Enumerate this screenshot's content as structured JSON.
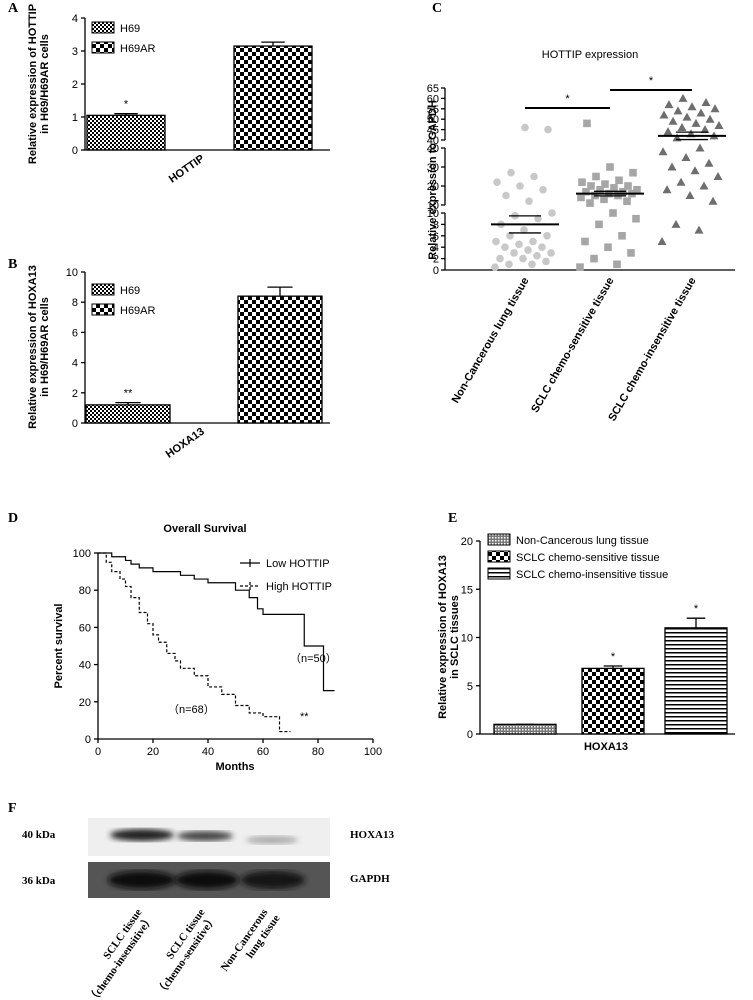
{
  "chart_data": [
    {
      "type": "bar",
      "panel": "A",
      "ylabel": [
        "Relative expression of HOTTIP",
        "in H69/H69AR cells"
      ],
      "categories": [
        "HOTTIP"
      ],
      "series": [
        {
          "name": "H69",
          "pattern": "fine-check",
          "color": "#000000",
          "values": [
            1.05
          ],
          "errors": [
            0.05
          ]
        },
        {
          "name": "H69AR",
          "pattern": "coarse-check",
          "color": "#000000",
          "values": [
            3.15
          ],
          "errors": [
            0.12
          ]
        }
      ],
      "annotations": [
        {
          "text": "*",
          "series": 0
        }
      ],
      "ylim": [
        0,
        4
      ],
      "yticks": [
        0,
        1,
        2,
        3,
        4
      ]
    },
    {
      "type": "bar",
      "panel": "B",
      "ylabel": [
        "Relative expression of HOXA13",
        "in H69/H69AR cells"
      ],
      "categories": [
        "HOXA13"
      ],
      "series": [
        {
          "name": "H69",
          "pattern": "fine-check",
          "color": "#000000",
          "values": [
            1.2
          ],
          "errors": [
            0.15
          ]
        },
        {
          "name": "H69AR",
          "pattern": "coarse-check",
          "color": "#000000",
          "values": [
            8.4
          ],
          "errors": [
            0.6
          ]
        }
      ],
      "annotations": [
        {
          "text": "**",
          "series": 0
        }
      ],
      "ylim": [
        0,
        10
      ],
      "yticks": [
        0,
        2,
        4,
        6,
        8,
        10
      ]
    },
    {
      "type": "scatter",
      "panel": "C",
      "title": "HOTTIP expression",
      "ylabel": "Relative expression to GAPDH",
      "categories": [
        "Non-Cancerous lung tissue",
        "SCLC chemo-sensitive tissue",
        "SCLC chemo-insensitive tissue"
      ],
      "colors": [
        "#c8c8c8",
        "#a6a6a6",
        "#6e6e6e"
      ],
      "markers": [
        "circle",
        "square",
        "triangle"
      ],
      "values": [
        [
          0.5,
          1,
          1,
          1.5,
          2,
          2,
          2.5,
          3,
          3,
          3.5,
          4,
          4,
          4.5,
          5,
          5,
          6,
          6,
          7,
          8,
          9,
          9.5,
          10,
          12,
          15,
          18,
          20,
          22,
          25,
          27,
          45,
          46
        ],
        [
          0.5,
          1,
          2,
          3,
          4,
          5,
          6,
          8,
          9,
          10,
          11,
          12,
          13,
          14,
          15,
          15,
          16,
          16,
          17,
          17,
          18,
          18,
          19,
          20,
          20,
          21,
          22,
          23,
          25,
          27,
          30,
          48
        ],
        [
          5,
          7,
          8,
          12,
          15,
          18,
          20,
          22,
          25,
          28,
          30,
          32,
          35,
          38,
          40,
          41,
          42,
          43,
          44,
          45,
          46,
          47,
          48,
          49,
          50,
          51,
          52,
          53,
          54,
          55,
          56,
          57,
          58,
          60
        ]
      ],
      "means": [
        8,
        16,
        42
      ],
      "errors": [
        1.5,
        1.2,
        1.8
      ],
      "comparisons": [
        {
          "text": "*",
          "groups": [
            0,
            1
          ]
        },
        {
          "text": "*",
          "groups": [
            1,
            2
          ]
        }
      ],
      "yaxis_segments": [
        {
          "ylim": [
            0,
            10
          ],
          "yticks": [
            0,
            2,
            4,
            6,
            8,
            10
          ]
        },
        {
          "ylim": [
            10,
            40
          ],
          "yticks": [
            10,
            20,
            30,
            40
          ]
        },
        {
          "ylim": [
            40,
            65
          ],
          "yticks": [
            40,
            45,
            50,
            55,
            60,
            65
          ]
        }
      ]
    },
    {
      "type": "line",
      "panel": "D",
      "title": "Overall Survival",
      "xlabel": "Months",
      "ylabel": "Percent survival",
      "series": [
        {
          "name": "Low HOTTIP",
          "color": "#000000",
          "dash": false,
          "x": [
            0,
            5,
            10,
            12,
            15,
            20,
            25,
            30,
            35,
            40,
            45,
            50,
            55,
            58,
            60,
            65,
            75,
            82,
            86
          ],
          "values": [
            100,
            98,
            96,
            94,
            92,
            90,
            90,
            88,
            86,
            84,
            84,
            80,
            76,
            70,
            67,
            67,
            50,
            26,
            26
          ]
        },
        {
          "name": "High HOTTIP",
          "color": "#000000",
          "dash": true,
          "x": [
            0,
            3,
            5,
            8,
            10,
            12,
            15,
            18,
            20,
            22,
            25,
            28,
            30,
            35,
            40,
            45,
            50,
            55,
            60,
            65,
            66,
            70
          ],
          "values": [
            100,
            95,
            90,
            86,
            82,
            76,
            68,
            62,
            56,
            52,
            46,
            42,
            38,
            34,
            28,
            24,
            18,
            14,
            12,
            12,
            4,
            4
          ]
        }
      ],
      "annotations": [
        "（n=50）",
        "（n=68）",
        "**"
      ],
      "xlim": [
        0,
        100
      ],
      "xticks": [
        0,
        20,
        40,
        60,
        80,
        100
      ],
      "ylim": [
        0,
        100
      ],
      "yticks": [
        0,
        20,
        40,
        60,
        80,
        100
      ]
    },
    {
      "type": "bar",
      "panel": "E",
      "ylabel": [
        "Relative expression of HOXA13",
        "in SCLC tissues"
      ],
      "categories": [
        "HOXA13"
      ],
      "series": [
        {
          "name": "Non-Cancerous lung tissue",
          "pattern": "small-check",
          "color": "#000000",
          "values": [
            1.0
          ],
          "errors": [
            0
          ]
        },
        {
          "name": "SCLC chemo-sensitive tissue",
          "pattern": "coarse-check",
          "color": "#000000",
          "values": [
            6.8
          ],
          "errors": [
            0.25
          ]
        },
        {
          "name": "SCLC chemo-insensitive tissue",
          "pattern": "horizontal-lines",
          "color": "#000000",
          "values": [
            11
          ],
          "errors": [
            1
          ]
        }
      ],
      "annotations": [
        {
          "text": "*",
          "series": 1
        },
        {
          "text": "*",
          "series": 2
        }
      ],
      "ylim": [
        0,
        20
      ],
      "yticks": [
        0,
        5,
        10,
        15,
        20
      ]
    }
  ],
  "blot": {
    "panel": "F",
    "sizes": [
      "40 kDa",
      "36 kDa"
    ],
    "bands": [
      "HOXA13",
      "GAPDH"
    ],
    "lanes": [
      [
        "SCLC tissue",
        "（chemo-insensitive）"
      ],
      [
        "SCLC tissue",
        "（chemo-sensitive）"
      ],
      [
        "Non-Cancerous",
        "lung tissue"
      ]
    ]
  }
}
